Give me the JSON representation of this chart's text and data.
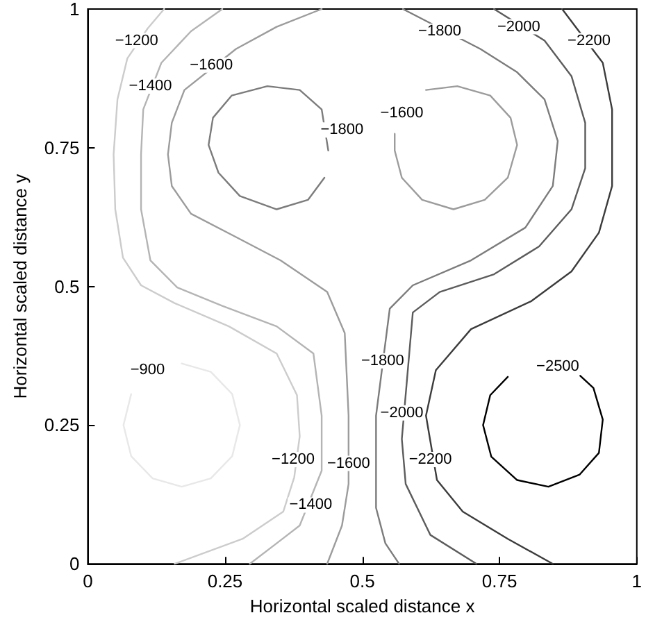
{
  "chart_data": {
    "type": "line",
    "xlabel": "Horizontal scaled distance x",
    "ylabel": "Horizontal scaled distance y",
    "xlim": [
      0,
      1
    ],
    "ylim": [
      0,
      1
    ],
    "xticks": [
      0,
      0.25,
      0.5,
      0.75,
      1
    ],
    "yticks": [
      0,
      0.25,
      0.5,
      0.75,
      1
    ],
    "grid": false,
    "marker": "none",
    "line_style": "solid",
    "series": [
      {
        "color": "#e8e8e8",
        "x": [
          0.171,
          0.224,
          0.263,
          0.277,
          0.263,
          0.224,
          0.171,
          0.118,
          0.079,
          0.065,
          0.079
        ],
        "values": [
          0.361,
          0.346,
          0.306,
          0.25,
          0.194,
          0.154,
          0.139,
          0.154,
          0.194,
          0.25,
          0.306
        ]
      },
      {
        "color": "#cccccc",
        "x": [
          0.139,
          0.109,
          0.072,
          0.054,
          0.047,
          0.05,
          0.064,
          0.097,
          0.158,
          0.257,
          0.344,
          0.381,
          0.386,
          0.376,
          0.356,
          0.282,
          0.158
        ],
        "values": [
          1,
          0.965,
          0.911,
          0.837,
          0.738,
          0.639,
          0.552,
          0.502,
          0.47,
          0.428,
          0.379,
          0.304,
          0.23,
          0.156,
          0.094,
          0.045,
          0
        ]
      },
      {
        "color": "#b4b4b4",
        "x": [
          0.245,
          0.188,
          0.134,
          0.101,
          0.097,
          0.097,
          0.114,
          0.163,
          0.245,
          0.344,
          0.411,
          0.426,
          0.426,
          0.386,
          0.344,
          0.295
        ],
        "values": [
          1,
          0.96,
          0.903,
          0.819,
          0.738,
          0.639,
          0.547,
          0.498,
          0.465,
          0.428,
          0.379,
          0.267,
          0.168,
          0.069,
          0.037,
          0
        ]
      },
      {
        "color": "#9c9c9c",
        "x": [
          0.426,
          0.344,
          0.27,
          0.176,
          0.153,
          0.146,
          0.153,
          0.188,
          0.27,
          0.351,
          0.436,
          0.468,
          0.475,
          0.475,
          0.463,
          0.436
        ],
        "values": [
          1,
          0.968,
          0.928,
          0.854,
          0.795,
          0.738,
          0.681,
          0.631,
          0.589,
          0.547,
          0.49,
          0.416,
          0.267,
          0.144,
          0.069,
          0
        ]
      },
      {
        "color": "#9c9c9c",
        "x": [
          0.616,
          0.673,
          0.733,
          0.77,
          0.782,
          0.765,
          0.723,
          0.666,
          0.609,
          0.572,
          0.559,
          0.559
        ],
        "values": [
          0.854,
          0.861,
          0.844,
          0.804,
          0.755,
          0.696,
          0.656,
          0.639,
          0.656,
          0.696,
          0.745,
          0.775
        ]
      },
      {
        "color": "#7c7c7c",
        "x": [
          0.438,
          0.426,
          0.386,
          0.327,
          0.262,
          0.228,
          0.22,
          0.238,
          0.277,
          0.344,
          0.401,
          0.431
        ],
        "values": [
          0.745,
          0.819,
          0.854,
          0.861,
          0.844,
          0.804,
          0.755,
          0.705,
          0.663,
          0.639,
          0.656,
          0.696
        ]
      },
      {
        "color": "#7c7c7c",
        "x": [
          0.574,
          0.715,
          0.782,
          0.832,
          0.856,
          0.847,
          0.797,
          0.698,
          0.592,
          0.55,
          0.525,
          0.525,
          0.542,
          0.567
        ],
        "values": [
          1,
          0.928,
          0.886,
          0.837,
          0.762,
          0.681,
          0.606,
          0.547,
          0.502,
          0.46,
          0.267,
          0.101,
          0.037,
          0
        ]
      },
      {
        "color": "#5c5c5c",
        "x": [
          0.74,
          0.832,
          0.881,
          0.906,
          0.906,
          0.881,
          0.822,
          0.74,
          0.641,
          0.592,
          0.572,
          0.579,
          0.624,
          0.708
        ],
        "values": [
          1,
          0.943,
          0.879,
          0.795,
          0.713,
          0.639,
          0.572,
          0.522,
          0.49,
          0.453,
          0.225,
          0.144,
          0.052,
          0
        ]
      },
      {
        "color": "#3c3c3c",
        "x": [
          0.864,
          0.938,
          0.955,
          0.955,
          0.931,
          0.881,
          0.807,
          0.698,
          0.634,
          0.616,
          0.636,
          0.683,
          0.765,
          0.847
        ],
        "values": [
          1,
          0.903,
          0.819,
          0.681,
          0.597,
          0.527,
          0.473,
          0.423,
          0.349,
          0.267,
          0.151,
          0.094,
          0.045,
          0
        ]
      },
      {
        "color": "#000000",
        "x": [
          0.897,
          0.921,
          0.938,
          0.931,
          0.896,
          0.839,
          0.782,
          0.735,
          0.72,
          0.733,
          0.765
        ],
        "values": [
          0.339,
          0.317,
          0.26,
          0.2,
          0.161,
          0.139,
          0.151,
          0.193,
          0.25,
          0.304,
          0.337
        ]
      }
    ],
    "annotations": [
      {
        "text": "−1200",
        "x": 0.089,
        "y": 0.943
      },
      {
        "text": "−1400",
        "x": 0.114,
        "y": 0.861
      },
      {
        "text": "−1600",
        "x": 0.225,
        "y": 0.899
      },
      {
        "text": "−1800",
        "x": 0.463,
        "y": 0.782
      },
      {
        "text": "−1600",
        "x": 0.572,
        "y": 0.812
      },
      {
        "text": "−1800",
        "x": 0.641,
        "y": 0.96
      },
      {
        "text": "−2000",
        "x": 0.785,
        "y": 0.968
      },
      {
        "text": "−2200",
        "x": 0.913,
        "y": 0.943
      },
      {
        "text": "−900",
        "x": 0.109,
        "y": 0.349
      },
      {
        "text": "−1800",
        "x": 0.537,
        "y": 0.366
      },
      {
        "text": "−2000",
        "x": 0.572,
        "y": 0.272
      },
      {
        "text": "−2200",
        "x": 0.624,
        "y": 0.188
      },
      {
        "text": "−1200",
        "x": 0.374,
        "y": 0.188
      },
      {
        "text": "−1600",
        "x": 0.475,
        "y": 0.181
      },
      {
        "text": "−1400",
        "x": 0.406,
        "y": 0.106
      },
      {
        "text": "−2500",
        "x": 0.856,
        "y": 0.356
      }
    ]
  }
}
